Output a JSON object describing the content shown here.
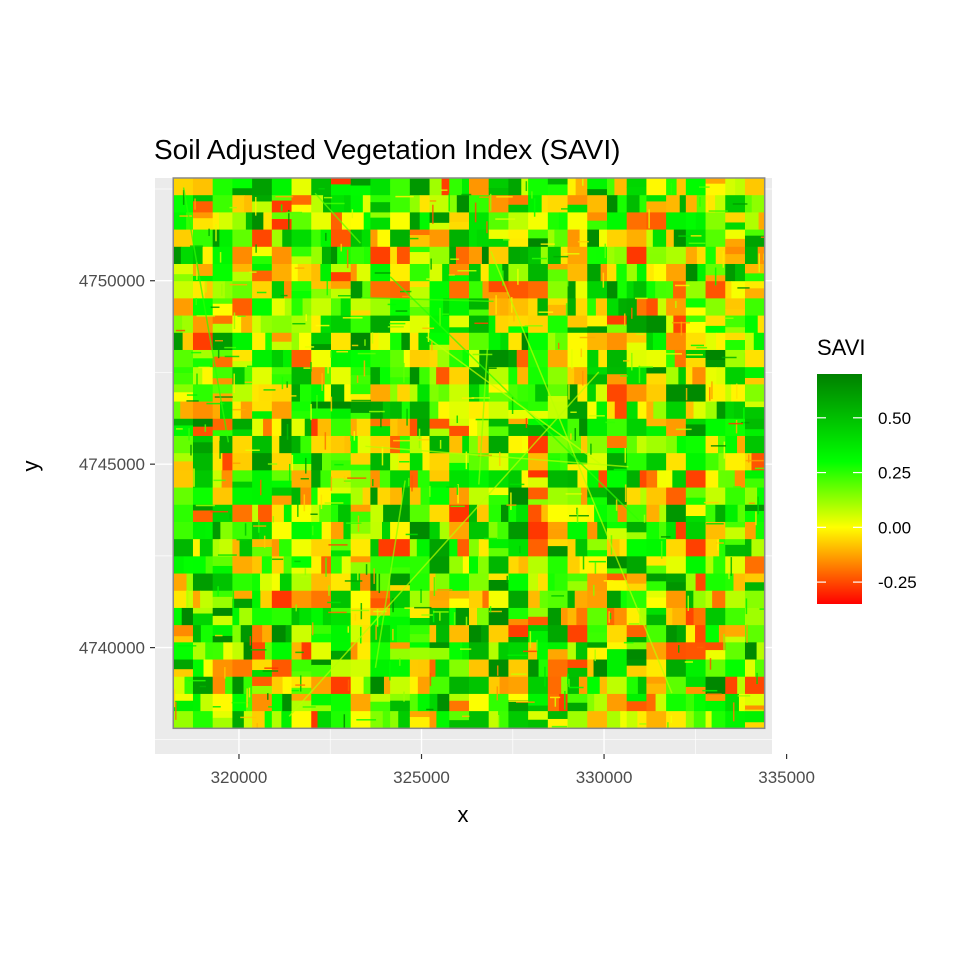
{
  "chart_data": {
    "type": "heatmap",
    "title": "Soil Adjusted Vegetation Index (SAVI)",
    "xlabel": "x",
    "ylabel": "y",
    "xlim": [
      317700,
      334600
    ],
    "ylim": [
      4737100,
      4752800
    ],
    "raster_extent": {
      "x": [
        318200,
        334400
      ],
      "y": [
        4737800,
        4752800
      ]
    },
    "x_ticks": [
      {
        "value": 320000,
        "label": "320000"
      },
      {
        "value": 325000,
        "label": "325000"
      },
      {
        "value": 330000,
        "label": "330000"
      },
      {
        "value": 335000,
        "label": "335000"
      }
    ],
    "y_ticks": [
      {
        "value": 4740000,
        "label": "4740000"
      },
      {
        "value": 4745000,
        "label": "4745000"
      },
      {
        "value": 4750000,
        "label": "4750000"
      }
    ],
    "grid": true,
    "legend": {
      "title": "SAVI",
      "placement": "right",
      "range": [
        -0.35,
        0.7
      ],
      "ticks": [
        {
          "value": 0.5,
          "label": "0.50"
        },
        {
          "value": 0.25,
          "label": "0.25"
        },
        {
          "value": 0.0,
          "label": "0.00"
        },
        {
          "value": -0.25,
          "label": "-0.25"
        }
      ],
      "color_stops": [
        {
          "value": -0.35,
          "color": "#ff0000"
        },
        {
          "value": 0.0,
          "color": "#ffff00"
        },
        {
          "value": 0.3,
          "color": "#00ff00"
        },
        {
          "value": 0.7,
          "color": "#008000"
        }
      ]
    }
  }
}
